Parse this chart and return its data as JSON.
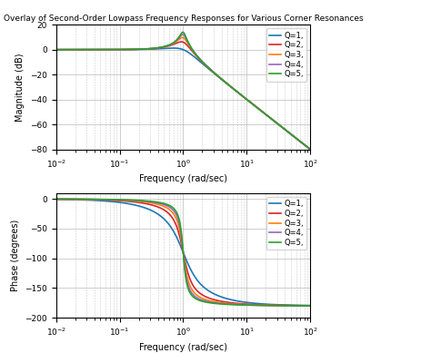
{
  "title": "Overlay of Second-Order Lowpass Frequency Responses for Various Corner Resonances",
  "Q_values": [
    1,
    2,
    3,
    4,
    5
  ],
  "colors": [
    "#1f77b4",
    "#d62728",
    "#ff7f0e",
    "#9467bd",
    "#2ca02c"
  ],
  "freq_range": [
    0.01,
    100
  ],
  "mag_ylim": [
    -80,
    20
  ],
  "phase_ylim": [
    -200,
    10
  ],
  "mag_yticks": [
    -80,
    -60,
    -40,
    -20,
    0,
    20
  ],
  "phase_yticks": [
    -200,
    -150,
    -100,
    -50,
    0
  ],
  "xlabel": "Frequency (rad/sec)",
  "mag_ylabel": "Magnitude (dB)",
  "phase_ylabel": "Phase (degrees)",
  "legend_labels": [
    "Q=1,",
    "Q=2,",
    "Q=3,",
    "Q=4,",
    "Q=5,"
  ]
}
